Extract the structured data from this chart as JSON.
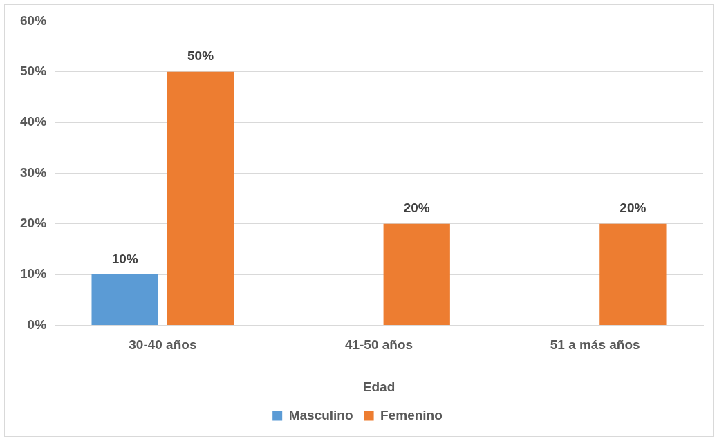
{
  "chart_data": {
    "type": "bar",
    "xlabel": "Edad",
    "categories": [
      "30-40 años",
      "41-50 años",
      "51 a más años"
    ],
    "series": [
      {
        "name": "Masculino",
        "color": "#5b9bd5",
        "values": [
          10,
          null,
          null
        ],
        "value_labels": [
          "10%",
          null,
          null
        ]
      },
      {
        "name": "Femenino",
        "color": "#ed7d31",
        "values": [
          50,
          20,
          20
        ],
        "value_labels": [
          "50%",
          "20%",
          "20%"
        ]
      }
    ],
    "ylim": [
      0,
      60
    ],
    "yticks": [
      {
        "value": 0,
        "label": "0%"
      },
      {
        "value": 10,
        "label": "10%"
      },
      {
        "value": 20,
        "label": "20%"
      },
      {
        "value": 30,
        "label": "30%"
      },
      {
        "value": 40,
        "label": "40%"
      },
      {
        "value": 50,
        "label": "50%"
      },
      {
        "value": 60,
        "label": "60%"
      }
    ],
    "grid": "y",
    "legend": "bottom"
  }
}
